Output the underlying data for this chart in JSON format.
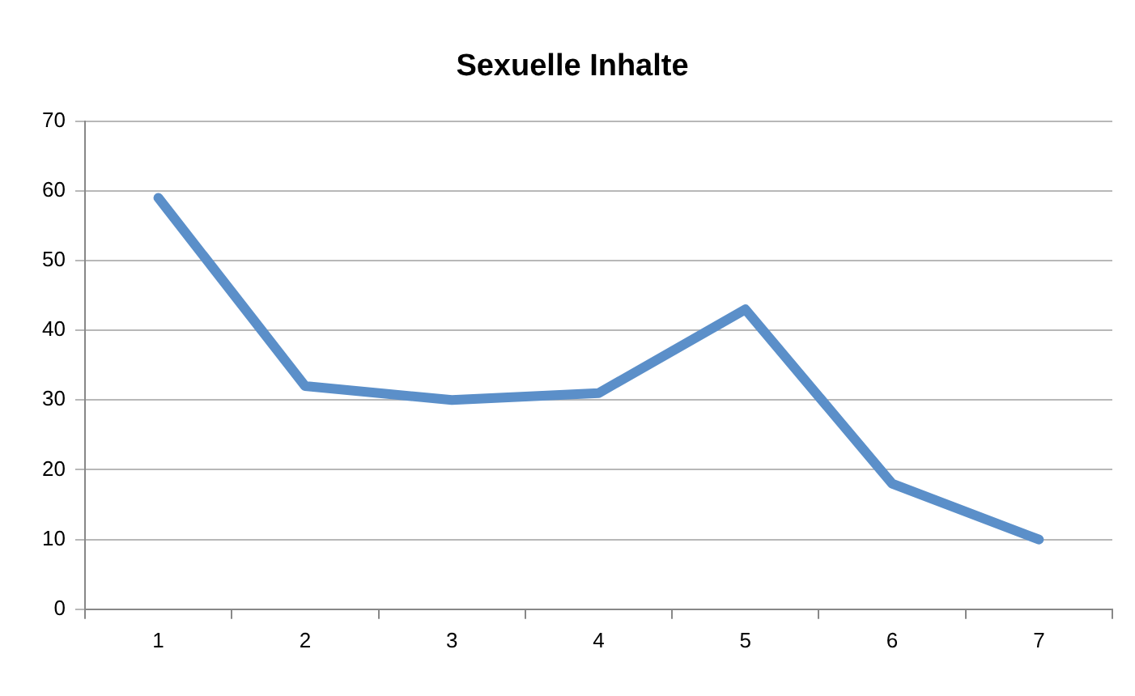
{
  "chart_data": {
    "type": "line",
    "title": "Sexuelle Inhalte",
    "categories": [
      "1",
      "2",
      "3",
      "4",
      "5",
      "6",
      "7"
    ],
    "series": [
      {
        "color": "#5b8fc9",
        "values": [
          59,
          32,
          30,
          31,
          43,
          18,
          10
        ]
      }
    ],
    "ylim": [
      0,
      70
    ],
    "yticks": [
      0,
      10,
      20,
      30,
      40,
      50,
      60,
      70
    ],
    "grid": "y",
    "legend": false,
    "marker": "none"
  }
}
